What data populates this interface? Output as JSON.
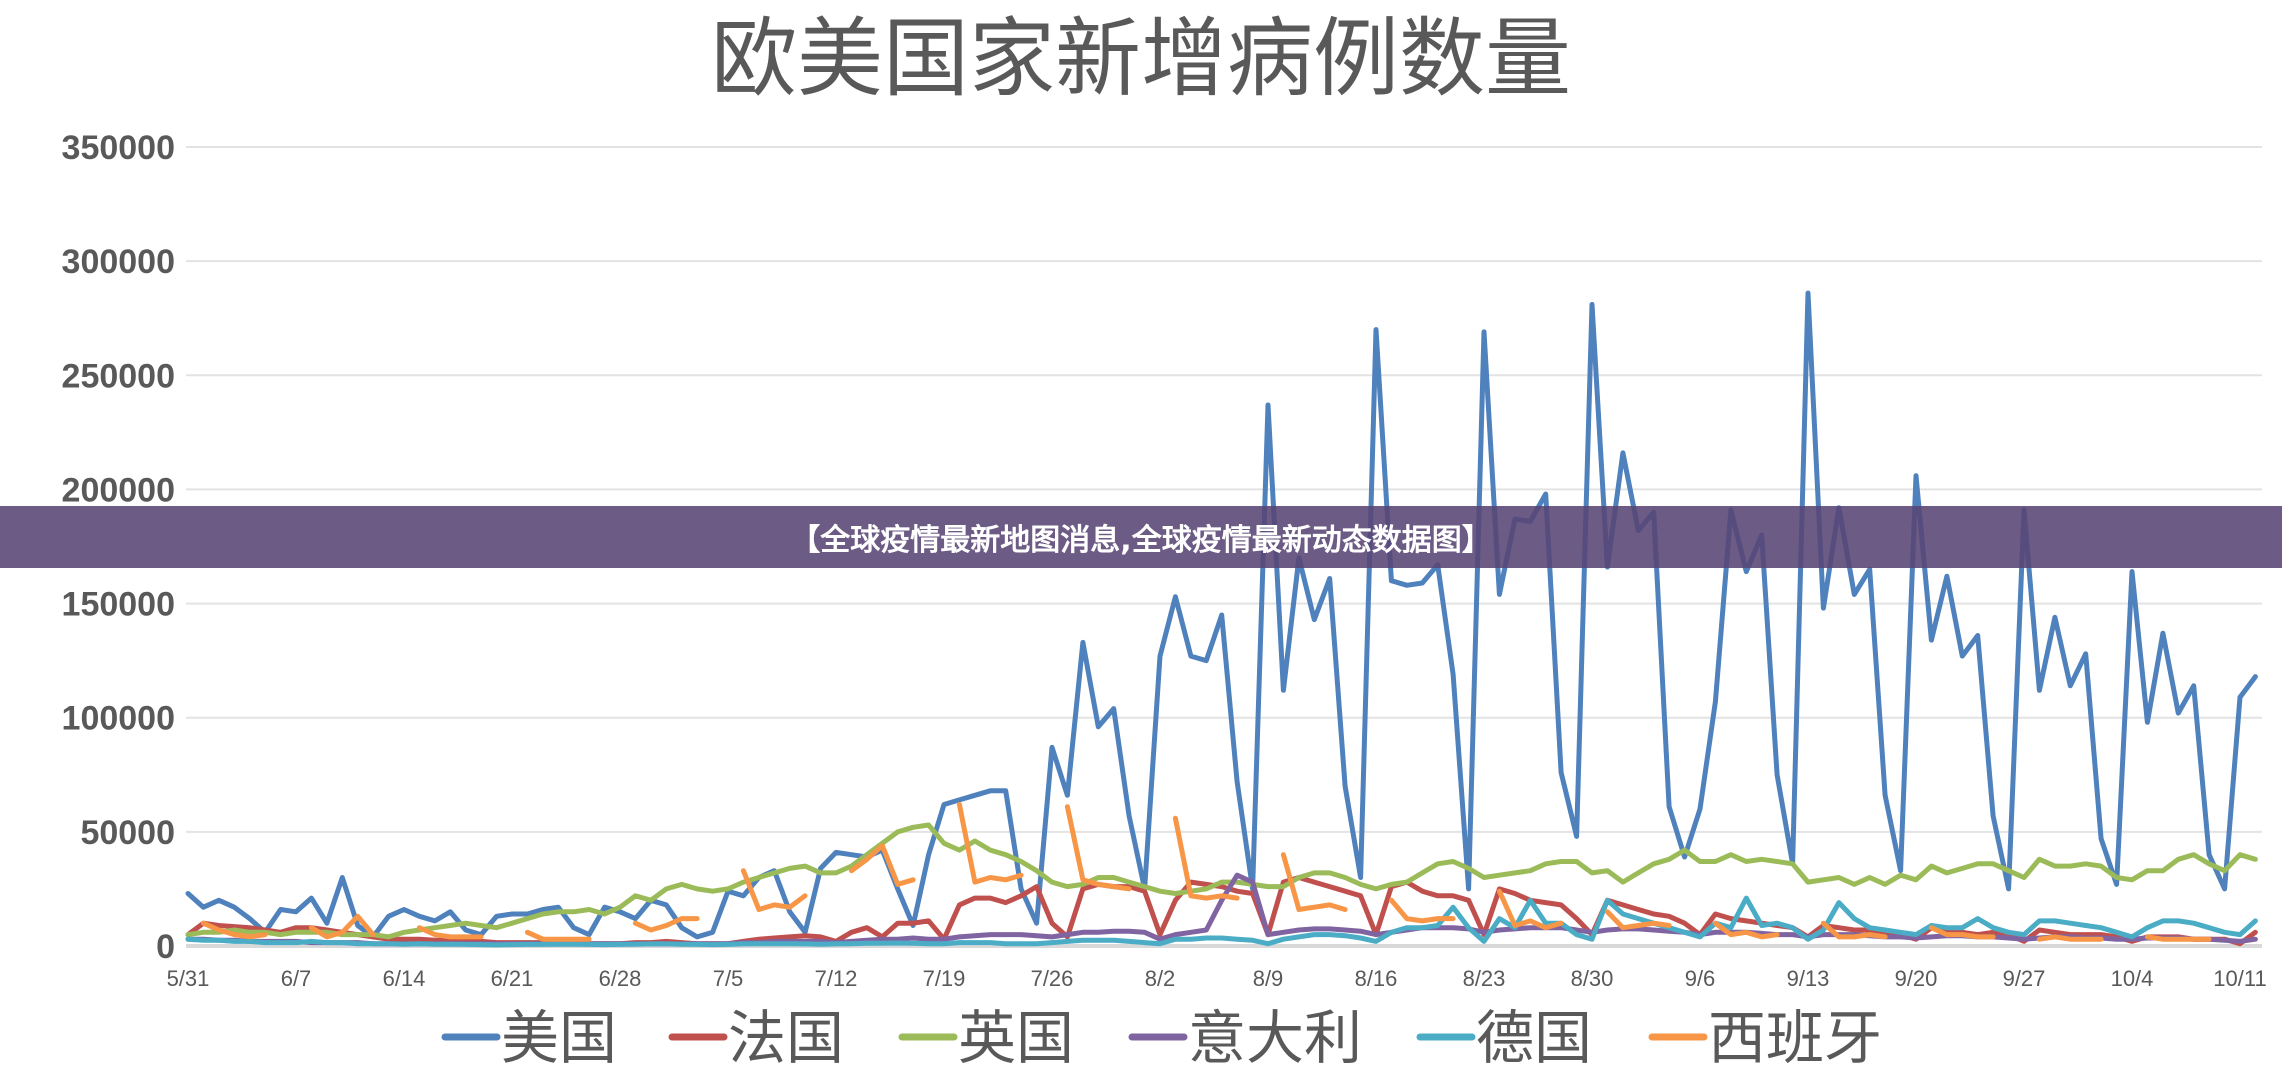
{
  "banner": {
    "text": "【全球疫情最新地图消息,全球疫情最新动态数据图】"
  },
  "chart_data": {
    "type": "line",
    "title": "欧美国家新增病例数量",
    "xlabel": "",
    "ylabel": "",
    "start_date": "5/31",
    "x_tick_labels": [
      "5/31",
      "6/7",
      "6/14",
      "6/21",
      "6/28",
      "7/5",
      "7/12",
      "7/19",
      "7/26",
      "8/2",
      "8/9",
      "8/16",
      "8/23",
      "8/30",
      "9/6",
      "9/13",
      "9/20",
      "9/27",
      "10/4",
      "10/11"
    ],
    "y_ticks": [
      0,
      50000,
      100000,
      150000,
      200000,
      250000,
      300000,
      350000
    ],
    "ylim": [
      0,
      350000
    ],
    "grid": "horizontal",
    "legend": "bottom",
    "series": [
      {
        "name": "美国",
        "color": "#4f81bd",
        "values": [
          23000,
          17000,
          20000,
          17000,
          12000,
          6000,
          16000,
          15000,
          21000,
          10000,
          30000,
          9000,
          4000,
          13000,
          16000,
          13000,
          11000,
          15000,
          7000,
          5000,
          13000,
          14000,
          14000,
          16000,
          17000,
          8000,
          5000,
          17000,
          15000,
          12000,
          20000,
          18000,
          8000,
          4000,
          6000,
          24000,
          22000,
          30000,
          33000,
          15000,
          6000,
          34000,
          41000,
          40000,
          39000,
          42000,
          25000,
          9000,
          40000,
          62000,
          64000,
          66000,
          68000,
          68000,
          25000,
          10000,
          87000,
          66000,
          133000,
          96000,
          104000,
          57000,
          25000,
          127000,
          153000,
          127000,
          125000,
          145000,
          72000,
          25000,
          237000,
          112000,
          170000,
          143000,
          161000,
          70000,
          30000,
          270000,
          160000,
          158000,
          159000,
          167000,
          119000,
          25000,
          269000,
          154000,
          187000,
          186000,
          198000,
          76000,
          48000,
          281000,
          166000,
          216000,
          182000,
          190000,
          61000,
          39000,
          60000,
          107000,
          191000,
          164000,
          180000,
          75000,
          36000,
          286000,
          148000,
          192000,
          154000,
          165000,
          66000,
          33000,
          206000,
          134000,
          162000,
          127000,
          136000,
          57000,
          25000,
          191000,
          112000,
          144000,
          114000,
          128000,
          47000,
          27000,
          164000,
          98000,
          137000,
          102000,
          114000,
          40000,
          25000,
          109000,
          118000
        ]
      },
      {
        "name": "法国",
        "color": "#c0504d",
        "values": [
          5000,
          10000,
          9000,
          8500,
          8000,
          7000,
          6000,
          8000,
          8000,
          7000,
          6000,
          5000,
          4000,
          3000,
          3000,
          3000,
          2500,
          2500,
          2000,
          2000,
          1500,
          1500,
          1500,
          1500,
          1000,
          1000,
          1000,
          1000,
          1000,
          1500,
          1500,
          2000,
          1500,
          1000,
          1000,
          1000,
          2000,
          3000,
          3500,
          4000,
          4500,
          4000,
          2000,
          6000,
          8000,
          4000,
          10000,
          10000,
          11000,
          3000,
          18000,
          21000,
          21000,
          19000,
          22000,
          26000,
          10000,
          4000,
          25000,
          27000,
          26000,
          26000,
          24000,
          5000,
          20000,
          28000,
          27000,
          26000,
          24000,
          23000,
          5000,
          28000,
          30000,
          28000,
          26000,
          24000,
          22000,
          5000,
          26000,
          28000,
          24000,
          22000,
          22000,
          20000,
          5000,
          25000,
          23000,
          20000,
          19000,
          18000,
          12000,
          5000,
          20000,
          18000,
          16000,
          14000,
          13000,
          10000,
          5000,
          14000,
          12000,
          11000,
          10000,
          9000,
          8000,
          4000,
          9000,
          8000,
          7000,
          7000,
          6000,
          5000,
          3000,
          8000,
          7000,
          6000,
          5000,
          6000,
          5000,
          2000,
          7000,
          6000,
          5000,
          5000,
          5000,
          4000,
          2000,
          4000,
          4000,
          4000,
          3000,
          3000,
          3000,
          1000,
          6000
        ]
      },
      {
        "name": "英国",
        "color": "#9bbb59",
        "values": [
          5000,
          6000,
          6000,
          7000,
          6000,
          6000,
          5000,
          6000,
          6000,
          6000,
          5000,
          5000,
          5000,
          4000,
          6000,
          7000,
          8000,
          9000,
          10000,
          9000,
          8000,
          10000,
          12000,
          14000,
          15000,
          15000,
          16000,
          14000,
          17000,
          22000,
          20000,
          25000,
          27000,
          25000,
          24000,
          25000,
          28000,
          30000,
          32000,
          34000,
          35000,
          32000,
          32000,
          35000,
          40000,
          45000,
          50000,
          52000,
          53000,
          45000,
          42000,
          46000,
          42000,
          40000,
          37000,
          33000,
          28000,
          26000,
          27000,
          30000,
          30000,
          28000,
          26000,
          24000,
          23000,
          24000,
          25000,
          28000,
          28000,
          27000,
          26000,
          26000,
          30000,
          32000,
          32000,
          30000,
          27000,
          25000,
          27000,
          28000,
          32000,
          36000,
          37000,
          34000,
          30000,
          31000,
          32000,
          33000,
          36000,
          37000,
          37000,
          32000,
          33000,
          28000,
          32000,
          36000,
          38000,
          42000,
          37000,
          37000,
          40000,
          37000,
          38000,
          37000,
          36000,
          28000,
          29000,
          30000,
          27000,
          30000,
          27000,
          31000,
          29000,
          35000,
          32000,
          34000,
          36000,
          36000,
          33000,
          30000,
          38000,
          35000,
          35000,
          36000,
          35000,
          30000,
          29000,
          33000,
          33000,
          38000,
          40000,
          36000,
          33000,
          40000,
          38000
        ]
      },
      {
        "name": "意大利",
        "color": "#8064a2",
        "values": [
          3000,
          3000,
          2500,
          2500,
          2000,
          2000,
          2000,
          2000,
          1500,
          1500,
          1500,
          1500,
          1000,
          1000,
          1000,
          1000,
          1000,
          1000,
          1000,
          1000,
          1000,
          1000,
          1000,
          1000,
          1000,
          1000,
          1000,
          1000,
          1000,
          1000,
          1000,
          1000,
          1000,
          1000,
          1000,
          1000,
          1500,
          1500,
          2000,
          2000,
          2000,
          2000,
          1500,
          2000,
          2500,
          3000,
          3000,
          3500,
          3000,
          3000,
          4000,
          4500,
          5000,
          5000,
          5000,
          4500,
          4000,
          5000,
          6000,
          6000,
          6500,
          6500,
          6000,
          3000,
          5000,
          6000,
          7000,
          20000,
          31000,
          28000,
          5000,
          6000,
          7000,
          7500,
          7500,
          7000,
          6500,
          5000,
          6000,
          7000,
          8000,
          8000,
          8000,
          7500,
          6000,
          7000,
          7500,
          8000,
          8000,
          8000,
          7000,
          6000,
          7000,
          7500,
          7500,
          7000,
          6500,
          6000,
          5000,
          6000,
          6000,
          6000,
          5500,
          5000,
          5000,
          4000,
          5000,
          5000,
          5000,
          4500,
          4000,
          4000,
          3500,
          4000,
          4500,
          4500,
          4000,
          4000,
          3500,
          3000,
          3500,
          4000,
          4000,
          3500,
          3500,
          3000,
          3000,
          3500,
          3500,
          3500,
          3000,
          3000,
          2500,
          2000,
          3000
        ]
      },
      {
        "name": "德国",
        "color": "#4bacc6",
        "values": [
          3000,
          2500,
          2500,
          2000,
          2000,
          1500,
          1500,
          1500,
          2000,
          1500,
          1500,
          1000,
          1000,
          1000,
          800,
          1000,
          800,
          800,
          700,
          600,
          500,
          600,
          700,
          700,
          800,
          800,
          700,
          600,
          700,
          800,
          900,
          900,
          800,
          700,
          600,
          700,
          900,
          1000,
          1000,
          1000,
          900,
          800,
          900,
          1000,
          1200,
          1200,
          1300,
          1200,
          1000,
          1000,
          1500,
          1500,
          1500,
          1000,
          1000,
          1000,
          1500,
          2000,
          2500,
          2500,
          2500,
          2000,
          1500,
          1000,
          3000,
          3000,
          3500,
          3500,
          3000,
          2500,
          1000,
          3000,
          4000,
          5000,
          5000,
          4500,
          3500,
          2000,
          6000,
          8000,
          8000,
          9000,
          17000,
          8000,
          2000,
          12000,
          8000,
          20000,
          10000,
          10000,
          5000,
          3000,
          20000,
          14000,
          12000,
          10000,
          8000,
          6000,
          4000,
          10000,
          8000,
          21000,
          9000,
          10000,
          8000,
          3000,
          7000,
          19000,
          12000,
          8000,
          7000,
          6000,
          5000,
          9000,
          8000,
          8000,
          12000,
          8000,
          6000,
          5000,
          11000,
          11000,
          10000,
          9000,
          8000,
          6000,
          4000,
          8000,
          11000,
          11000,
          10000,
          8000,
          6000,
          5000,
          11000
        ]
      },
      {
        "name": "西班牙",
        "color": "#f79646",
        "values": [
          null,
          10000,
          7000,
          5000,
          4000,
          5000,
          null,
          null,
          8000,
          4000,
          6000,
          13000,
          5000,
          null,
          null,
          8000,
          5000,
          4000,
          4000,
          4000,
          null,
          null,
          6000,
          3000,
          3000,
          3000,
          3000,
          null,
          null,
          10000,
          7000,
          9000,
          12000,
          12000,
          null,
          null,
          33000,
          16000,
          18000,
          17000,
          22000,
          null,
          null,
          33000,
          38000,
          44000,
          27000,
          29000,
          null,
          null,
          62000,
          28000,
          30000,
          29000,
          31000,
          null,
          null,
          61000,
          29000,
          27000,
          26000,
          25000,
          null,
          null,
          56000,
          22000,
          21000,
          22000,
          21000,
          null,
          null,
          40000,
          16000,
          17000,
          18000,
          16000,
          null,
          null,
          20000,
          12000,
          11000,
          12000,
          12000,
          null,
          null,
          24000,
          9000,
          11000,
          8000,
          10000,
          null,
          null,
          15000,
          8000,
          9000,
          10000,
          9000,
          null,
          null,
          10000,
          5000,
          6000,
          4000,
          5000,
          null,
          null,
          10000,
          4000,
          4000,
          5000,
          4000,
          null,
          null,
          8000,
          5000,
          5000,
          4000,
          4000,
          null,
          null,
          3000,
          4000,
          3000,
          3000,
          3000,
          null,
          null,
          4000,
          3000,
          3000,
          3000,
          3000,
          null,
          null,
          null
        ]
      }
    ]
  }
}
